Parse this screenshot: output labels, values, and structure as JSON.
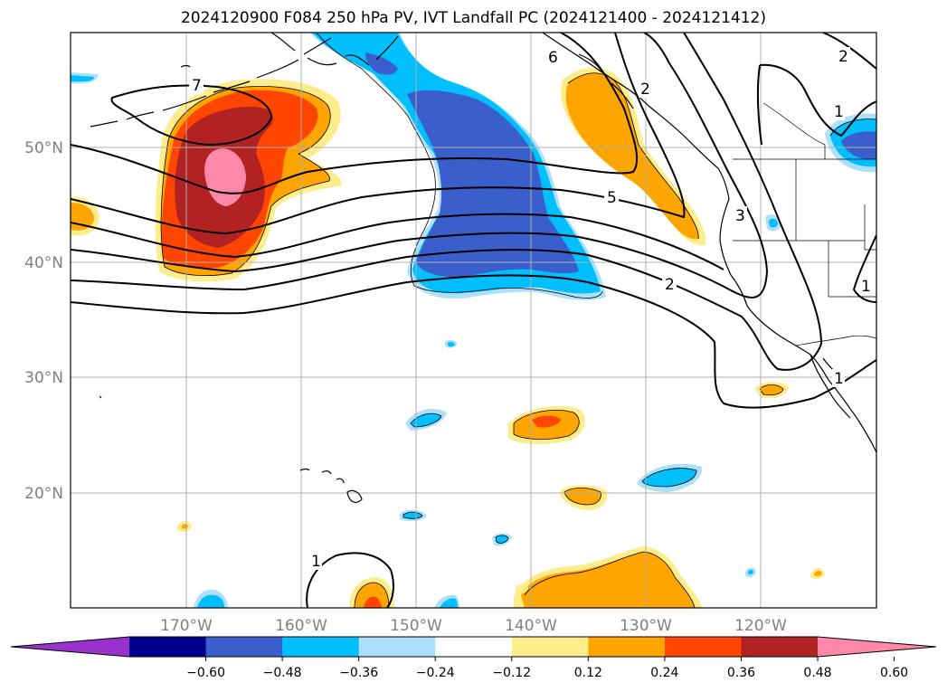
{
  "title": "2024120900 F084 250 hPa PV, IVT Landfall PC (2024121400 - 2024121412)",
  "lat_labels": [
    "50°N",
    "40°N",
    "30°N",
    "20°N"
  ],
  "lon_labels": [
    "170°W",
    "160°W",
    "150°W",
    "140°W",
    "130°W",
    "120°W"
  ],
  "colorbar": {
    "tick_labels": [
      "−0.60",
      "−0.48",
      "−0.36",
      "−0.24",
      "−0.12",
      "0.12",
      "0.24",
      "0.36",
      "0.48",
      "0.60"
    ],
    "colors": [
      "#9932CC",
      "#00008B",
      "#3A5FCD",
      "#00BFFF",
      "#ADE0FA",
      "#FFFFFF",
      "#FFEC8B",
      "#FFA500",
      "#FF4500",
      "#B22222",
      "#FF88AA"
    ]
  },
  "contour_labels": [
    "7",
    "6",
    "5",
    "3",
    "2",
    "2",
    "1",
    "1",
    "1",
    "1",
    "2"
  ],
  "colors": {
    "pink": "#FF88AA",
    "dark_red": "#B22222",
    "orange_red": "#FF4500",
    "orange": "#FFA500",
    "light_yellow": "#FFEC8B",
    "light_blue": "#ADE0FA",
    "deep_sky_blue": "#00BFFF",
    "royal_blue": "#3A5FCD",
    "grid": "#B0B0B0",
    "label_gray": "#808080"
  }
}
